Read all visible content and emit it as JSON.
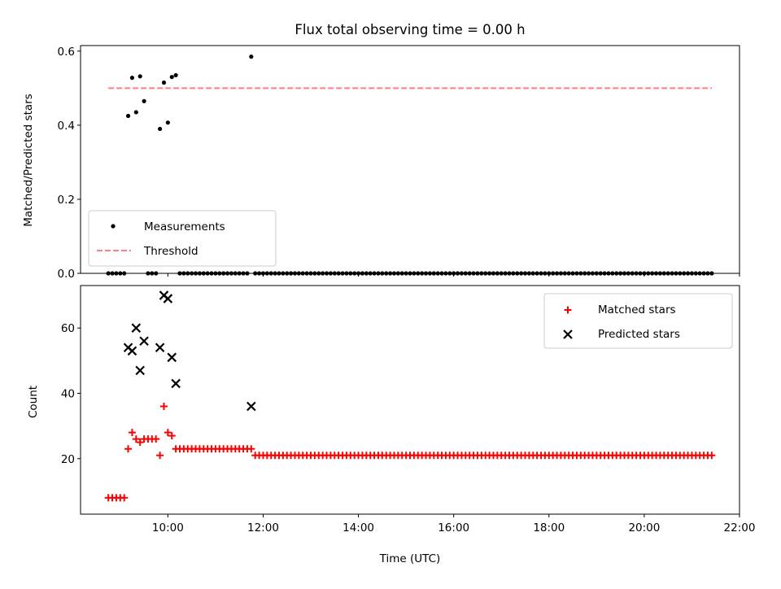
{
  "figure": {
    "title": "Flux total observing time = 0.00 h"
  },
  "colors": {
    "measurement": "#000000",
    "threshold": "#ff7f7f",
    "matched": "#ff0000",
    "predicted": "#000000",
    "axes": "#000000",
    "background": "#ffffff"
  },
  "chart_data": [
    {
      "type": "scatter",
      "title": "Flux total observing time = 0.00 h",
      "xlabel": "",
      "ylabel": "Matched/Predicted stars",
      "xlim": [
        "08:10",
        "22:00"
      ],
      "ylim": [
        0,
        0.615
      ],
      "yticks": [
        0.0,
        0.2,
        0.4,
        0.6
      ],
      "ytick_labels": [
        "0.0",
        "0.2",
        "0.4",
        "0.6"
      ],
      "xticks": [
        "10:00",
        "12:00",
        "14:00",
        "16:00",
        "18:00",
        "20:00",
        "22:00"
      ],
      "show_xtick_labels": false,
      "grid": false,
      "legend": {
        "placement": "lower-left",
        "entries": [
          "Measurements",
          "Threshold"
        ]
      },
      "series": [
        {
          "name": "Measurements",
          "marker": "dot",
          "color": "#000000",
          "points": [
            {
              "x": "08:45",
              "y": 0.0
            },
            {
              "x": "08:50",
              "y": 0.0
            },
            {
              "x": "08:55",
              "y": 0.0
            },
            {
              "x": "09:00",
              "y": 0.0
            },
            {
              "x": "09:05",
              "y": 0.0
            },
            {
              "x": "09:10",
              "y": 0.425
            },
            {
              "x": "09:15",
              "y": 0.528
            },
            {
              "x": "09:20",
              "y": 0.435
            },
            {
              "x": "09:25",
              "y": 0.532
            },
            {
              "x": "09:30",
              "y": 0.465
            },
            {
              "x": "09:35",
              "y": 0.0
            },
            {
              "x": "09:40",
              "y": 0.0
            },
            {
              "x": "09:45",
              "y": 0.0
            },
            {
              "x": "09:50",
              "y": 0.39
            },
            {
              "x": "09:55",
              "y": 0.515
            },
            {
              "x": "10:00",
              "y": 0.407
            },
            {
              "x": "10:05",
              "y": 0.53
            },
            {
              "x": "10:10",
              "y": 0.535
            },
            {
              "x": "11:45",
              "y": 0.585
            }
          ],
          "zero_runs": [
            {
              "from": "10:15",
              "to": "11:40",
              "step_minutes": 5
            },
            {
              "from": "11:50",
              "to": "21:25",
              "step_minutes": 5
            }
          ]
        },
        {
          "name": "Threshold",
          "style": "dashed",
          "color": "#ff7f7f",
          "points": [
            {
              "x": "08:45",
              "y": 0.5
            },
            {
              "x": "21:25",
              "y": 0.5
            }
          ]
        }
      ]
    },
    {
      "type": "scatter",
      "xlabel": "Time (UTC)",
      "ylabel": "Count",
      "xlim": [
        "08:10",
        "22:00"
      ],
      "ylim": [
        3,
        73
      ],
      "yticks": [
        20,
        40,
        60
      ],
      "ytick_labels": [
        "20",
        "40",
        "60"
      ],
      "xticks": [
        "10:00",
        "12:00",
        "14:00",
        "16:00",
        "18:00",
        "20:00",
        "22:00"
      ],
      "xtick_labels": [
        "10:00",
        "12:00",
        "14:00",
        "16:00",
        "18:00",
        "20:00",
        "22:00"
      ],
      "grid": false,
      "legend": {
        "placement": "upper-right",
        "entries": [
          "Matched stars",
          "Predicted stars"
        ]
      },
      "series": [
        {
          "name": "Matched stars",
          "marker": "plus",
          "color": "#ff0000",
          "points": [
            {
              "x": "08:45",
              "y": 8
            },
            {
              "x": "08:50",
              "y": 8
            },
            {
              "x": "08:55",
              "y": 8
            },
            {
              "x": "09:00",
              "y": 8
            },
            {
              "x": "09:05",
              "y": 8
            },
            {
              "x": "09:10",
              "y": 23
            },
            {
              "x": "09:15",
              "y": 28
            },
            {
              "x": "09:20",
              "y": 26
            },
            {
              "x": "09:25",
              "y": 25
            },
            {
              "x": "09:30",
              "y": 26
            },
            {
              "x": "09:35",
              "y": 26
            },
            {
              "x": "09:40",
              "y": 26
            },
            {
              "x": "09:45",
              "y": 26
            },
            {
              "x": "09:50",
              "y": 21
            },
            {
              "x": "09:55",
              "y": 36
            },
            {
              "x": "10:00",
              "y": 28
            },
            {
              "x": "10:05",
              "y": 27
            },
            {
              "x": "10:10",
              "y": 23
            },
            {
              "x": "11:45",
              "y": 23
            }
          ],
          "runs": [
            {
              "from": "10:15",
              "to": "11:40",
              "step_minutes": 5,
              "y": 23
            },
            {
              "from": "11:50",
              "to": "21:25",
              "step_minutes": 5,
              "y": 21
            }
          ]
        },
        {
          "name": "Predicted stars",
          "marker": "x",
          "color": "#000000",
          "points": [
            {
              "x": "09:10",
              "y": 54
            },
            {
              "x": "09:15",
              "y": 53
            },
            {
              "x": "09:20",
              "y": 60
            },
            {
              "x": "09:25",
              "y": 47
            },
            {
              "x": "09:30",
              "y": 56
            },
            {
              "x": "09:50",
              "y": 54
            },
            {
              "x": "09:55",
              "y": 70
            },
            {
              "x": "10:00",
              "y": 69
            },
            {
              "x": "10:05",
              "y": 51
            },
            {
              "x": "10:10",
              "y": 43
            },
            {
              "x": "11:45",
              "y": 36
            }
          ]
        }
      ]
    }
  ]
}
